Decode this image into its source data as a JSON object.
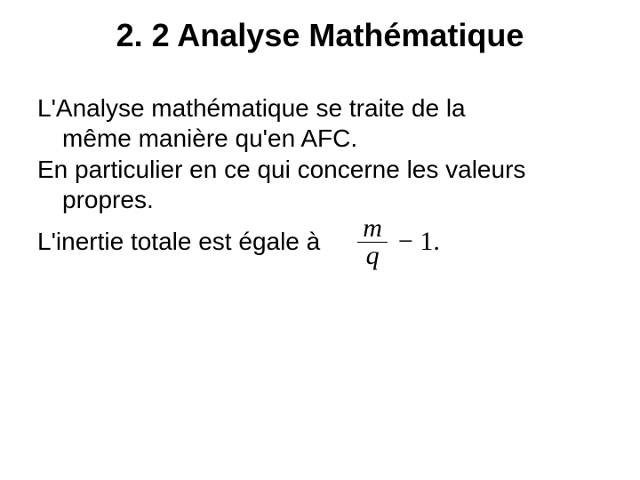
{
  "slide": {
    "title": "2. 2 Analyse Mathématique",
    "title_fontsize": 36,
    "title_fontweight": "bold",
    "title_align": "center",
    "body_fontsize": 28,
    "background_color": "#ffffff",
    "text_color": "#000000",
    "paragraphs": {
      "p1_line1": "L'Analyse mathématique se traite de la",
      "p1_line2": "même manière qu'en AFC.",
      "p2_line1": "En particulier en ce qui concerne les valeurs",
      "p2_line2": "propres.",
      "p3_line1": "L'inertie totale est égale à"
    },
    "formula": {
      "numerator": "m",
      "denominator": "q",
      "tail": "− 1.",
      "font_family": "Times New Roman",
      "font_style": "italic",
      "font_size": 30,
      "bar_color": "#000000"
    }
  }
}
